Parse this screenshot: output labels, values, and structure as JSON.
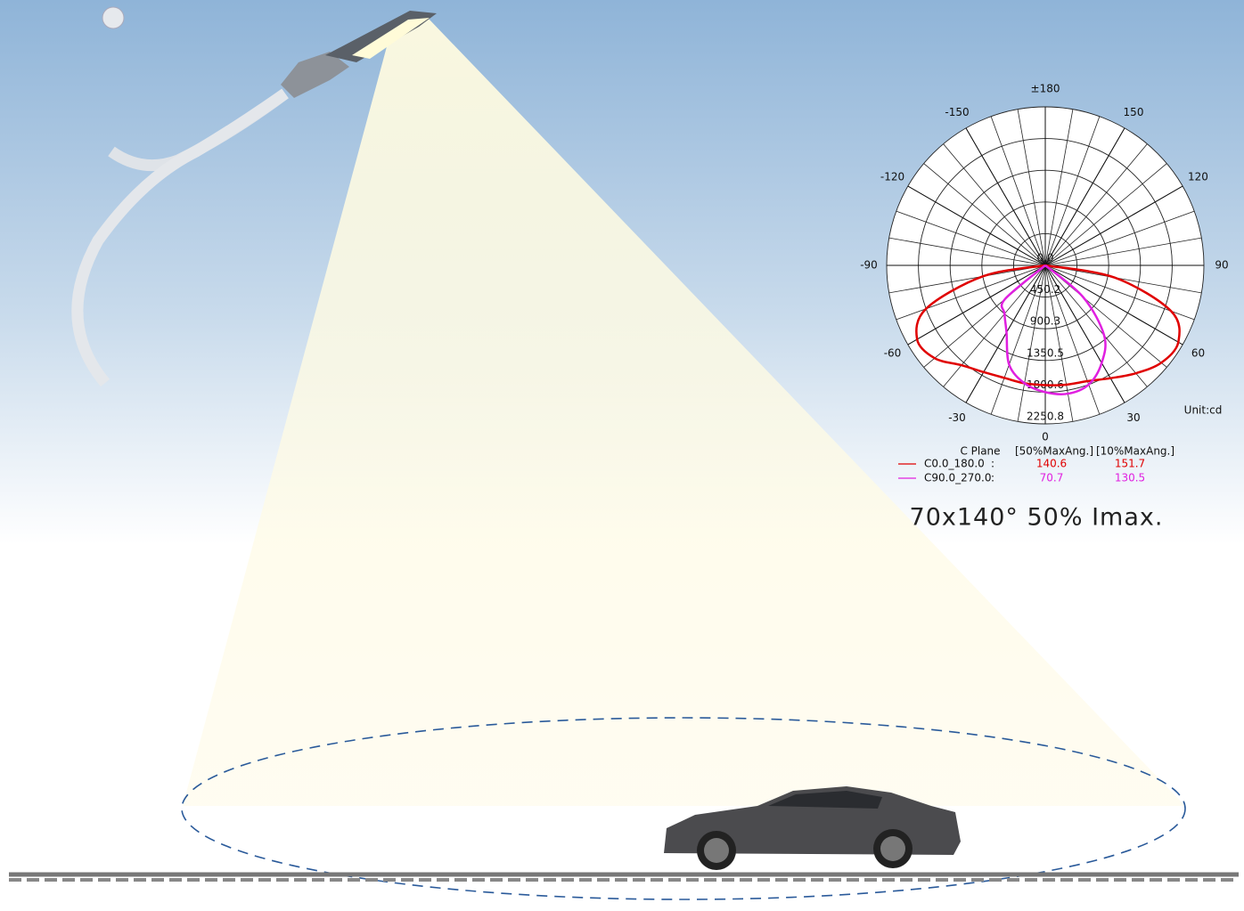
{
  "chart_data": {
    "type": "polar",
    "unit_label": "Unit:cd",
    "caption": "70x140°  50% Imax.",
    "rlim": [
      0,
      2250.8
    ],
    "rticks": [
      {
        "value": 0,
        "label": "0.0"
      },
      450.2,
      900.3,
      1350.5,
      1800.6,
      2250.8
    ],
    "thetaticks": [
      0,
      30,
      60,
      90,
      120,
      150,
      {
        "value": 180,
        "label": "±180"
      },
      -150,
      -120,
      -90,
      -60,
      -30
    ],
    "legend_header": [
      "C Plane",
      "[50%MaxAng.]",
      "[10%MaxAng.]"
    ],
    "series": [
      {
        "name": "C0.0_180.0",
        "color": "#e00000",
        "theta": [
          -90,
          -80,
          -70,
          -60,
          -50,
          -40,
          -30,
          -20,
          -10,
          0,
          10,
          20,
          30,
          40,
          50,
          60,
          70,
          80,
          90
        ],
        "values": [
          0,
          900,
          1800,
          2100,
          2050,
          1850,
          1750,
          1700,
          1700,
          1700,
          1720,
          1750,
          1850,
          2000,
          2150,
          2180,
          1900,
          1000,
          0
        ],
        "legend_values": [
          "140.6",
          "151.7"
        ]
      },
      {
        "name": "C90.0_270.0",
        "color": "#e020e0",
        "theta": [
          -60,
          -50,
          -40,
          -30,
          -20,
          -10,
          0,
          10,
          20,
          30,
          40,
          50,
          60
        ],
        "values": [
          0,
          750,
          900,
          1100,
          1500,
          1700,
          1800,
          1850,
          1800,
          1600,
          1300,
          700,
          0
        ],
        "legend_values": [
          "70.7",
          "130.5"
        ]
      }
    ]
  }
}
